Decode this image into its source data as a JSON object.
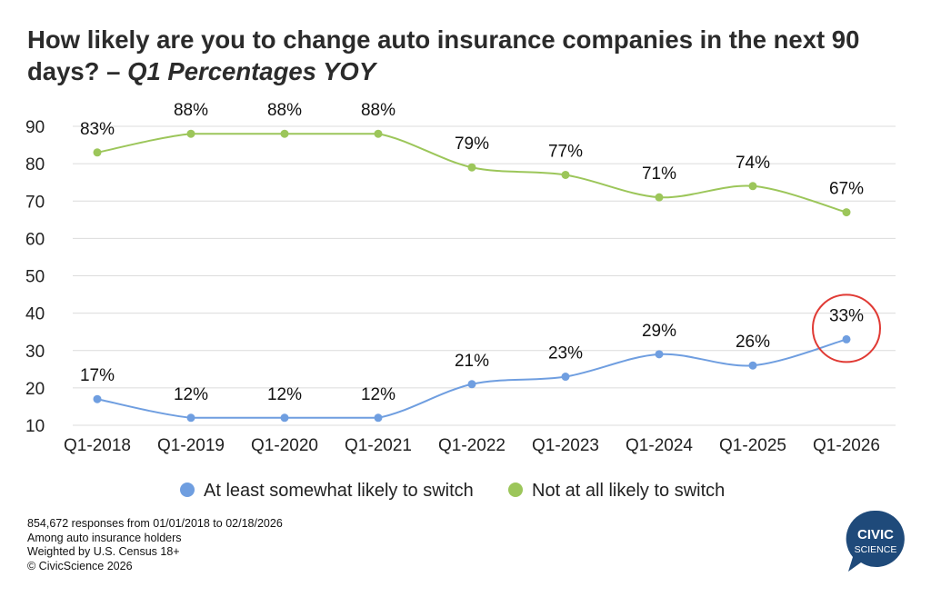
{
  "title": {
    "main": "How likely are you to change auto insurance companies in the next 90 days? –",
    "sub": "Q1 Percentages YOY"
  },
  "chart_data": {
    "type": "line",
    "categories": [
      "Q1-2018",
      "Q1-2019",
      "Q1-2020",
      "Q1-2021",
      "Q1-2022",
      "Q1-2023",
      "Q1-2024",
      "Q1-2025",
      "Q1-2026"
    ],
    "yticks": [
      10,
      20,
      30,
      40,
      50,
      60,
      70,
      80,
      90
    ],
    "ylim": [
      10,
      90
    ],
    "grid": true,
    "legend_position": "bottom",
    "series": [
      {
        "name": "At least somewhat likely to switch",
        "color": "#6f9ee0",
        "values": [
          17,
          12,
          12,
          12,
          21,
          23,
          29,
          26,
          33
        ],
        "labels": [
          "17%",
          "12%",
          "12%",
          "12%",
          "21%",
          "23%",
          "29%",
          "26%",
          "33%"
        ]
      },
      {
        "name": "Not at all likely to switch",
        "color": "#9cc65a",
        "values": [
          83,
          88,
          88,
          88,
          79,
          77,
          71,
          74,
          67
        ],
        "labels": [
          "83%",
          "88%",
          "88%",
          "88%",
          "79%",
          "77%",
          "71%",
          "74%",
          "67%"
        ]
      }
    ],
    "highlight": {
      "series": 0,
      "index": 8,
      "color": "#e03a34"
    }
  },
  "footnotes": [
    "854,672 responses from 01/01/2018 to 02/18/2026",
    "Among auto insurance holders",
    "Weighted by U.S. Census 18+",
    "© CivicScience 2026"
  ],
  "logo": {
    "line1": "CIVIC",
    "line2": "SCIENCE",
    "color": "#1f4a7a"
  }
}
